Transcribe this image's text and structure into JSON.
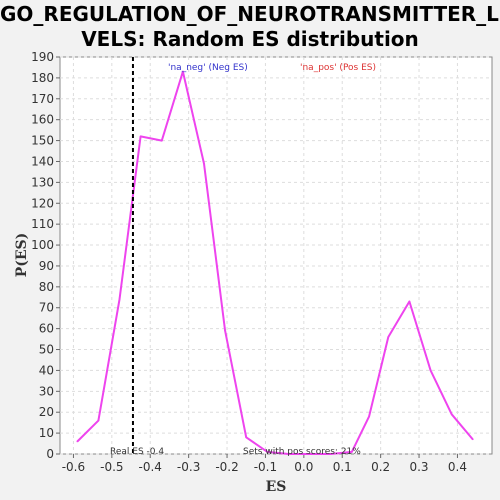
{
  "chart_data": {
    "type": "line",
    "title_line1": "GO_REGULATION_OF_NEUROTRANSMITTER_LE",
    "title_line2": "VELS: Random ES distribution",
    "xlabel": "ES",
    "ylabel": "P(ES)",
    "xlim": [
      -0.635,
      0.49
    ],
    "ylim": [
      0,
      190
    ],
    "x_ticks": [
      "-0.6",
      "-0.5",
      "-0.4",
      "-0.3",
      "-0.2",
      "-0.1",
      "0.0",
      "0.1",
      "0.2",
      "0.3",
      "0.4"
    ],
    "x_tick_values": [
      -0.6,
      -0.5,
      -0.4,
      -0.3,
      -0.2,
      -0.1,
      0.0,
      0.1,
      0.2,
      0.3,
      0.4
    ],
    "y_ticks": [
      0,
      10,
      20,
      30,
      40,
      50,
      60,
      70,
      80,
      90,
      100,
      110,
      120,
      130,
      140,
      150,
      160,
      170,
      180,
      190
    ],
    "grid": true,
    "legend": [
      {
        "label": "'na_neg' (Neg ES)",
        "color": "#3333cc"
      },
      {
        "label": "'na_pos' (Pos ES)",
        "color": "#dd3333"
      }
    ],
    "series": [
      {
        "color": "#ee44ee",
        "x": [
          -0.59,
          -0.535,
          -0.48,
          -0.425,
          -0.37,
          -0.315,
          -0.26,
          -0.205,
          -0.15,
          -0.095,
          -0.04,
          0.015,
          0.07,
          0.125,
          0.17,
          0.22,
          0.275,
          0.33,
          0.385,
          0.44
        ],
        "y": [
          6,
          16,
          74,
          152,
          150,
          183,
          139,
          59,
          8,
          1,
          0,
          0,
          0,
          1,
          18,
          56,
          73,
          40,
          19,
          7
        ]
      }
    ],
    "real_es_value": -0.445,
    "real_es_label": "Real ES -0.4",
    "pos_scores_label": "Sets with pos scores: 21%"
  }
}
